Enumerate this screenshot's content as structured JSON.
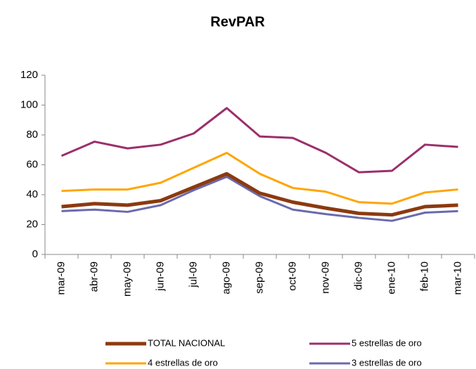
{
  "chart_data": {
    "type": "line",
    "title": "RevPAR",
    "categories": [
      "mar-09",
      "abr-09",
      "may-09",
      "jun-09",
      "jul-09",
      "ago-09",
      "sep-09",
      "oct-09",
      "nov-09",
      "dic-09",
      "ene-10",
      "feb-10",
      "mar-10"
    ],
    "series": [
      {
        "name": "TOTAL NACIONAL",
        "color": "#8b3a10",
        "values": [
          32,
          34,
          33,
          36,
          45,
          54,
          41,
          35,
          31,
          27.5,
          26.5,
          32,
          33
        ]
      },
      {
        "name": "5 estrellas de oro",
        "color": "#9b2f6b",
        "values": [
          66,
          75.5,
          71,
          73.5,
          81,
          98,
          79,
          78,
          68,
          55,
          56,
          73.5,
          72
        ]
      },
      {
        "name": "4 estrellas de oro",
        "color": "#ffa500",
        "values": [
          42.5,
          43.5,
          43.5,
          48,
          58,
          68,
          54,
          44.5,
          42,
          35,
          34,
          41.5,
          43.5
        ]
      },
      {
        "name": "3 estrellas de oro",
        "color": "#6a6aae",
        "values": [
          29,
          30,
          28.5,
          33,
          43,
          52,
          39,
          30,
          27,
          24.5,
          22.5,
          28,
          29
        ]
      }
    ],
    "ylim": [
      0,
      120
    ],
    "yticks": [
      0,
      20,
      40,
      60,
      80,
      100,
      120
    ],
    "grid": false
  }
}
